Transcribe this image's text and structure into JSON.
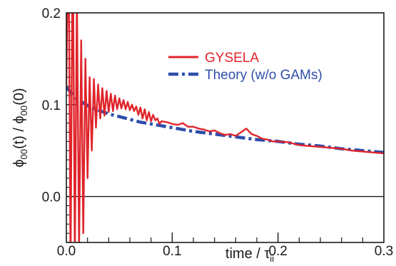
{
  "chart_data": {
    "type": "line",
    "xlabel": "time / τ",
    "xlabel_sub": "ii",
    "ylabel": "ϕ",
    "ylabel_parts": [
      "ϕ",
      "00",
      "(t) / ϕ",
      "00",
      "(0)"
    ],
    "xlim": [
      0.0,
      0.3
    ],
    "ylim": [
      -0.05,
      0.2
    ],
    "x_ticks": [
      "0.0",
      "0.1",
      "0.2",
      "0.3"
    ],
    "y_ticks": [
      "0.0",
      "0.1",
      "0.2"
    ],
    "zero_line": 0.0,
    "grid": false,
    "legend_position": "top-right",
    "series": [
      {
        "name": "GYSELA",
        "color": "#e0242b",
        "style": "solid",
        "x": [
          0.0,
          0.002,
          0.004,
          0.006,
          0.008,
          0.01,
          0.012,
          0.014,
          0.016,
          0.018,
          0.02,
          0.022,
          0.024,
          0.026,
          0.028,
          0.03,
          0.032,
          0.034,
          0.036,
          0.038,
          0.04,
          0.042,
          0.044,
          0.046,
          0.048,
          0.05,
          0.052,
          0.054,
          0.056,
          0.058,
          0.06,
          0.062,
          0.064,
          0.066,
          0.068,
          0.07,
          0.072,
          0.074,
          0.076,
          0.078,
          0.08,
          0.082,
          0.084,
          0.086,
          0.088,
          0.09,
          0.095,
          0.1,
          0.105,
          0.11,
          0.115,
          0.12,
          0.125,
          0.13,
          0.135,
          0.14,
          0.145,
          0.15,
          0.155,
          0.16,
          0.165,
          0.17,
          0.175,
          0.18,
          0.185,
          0.19,
          0.195,
          0.2,
          0.21,
          0.22,
          0.23,
          0.24,
          0.25,
          0.26,
          0.27,
          0.28,
          0.29,
          0.3
        ],
        "values": [
          0.12,
          0.3,
          -0.08,
          0.3,
          -0.07,
          0.22,
          -0.06,
          0.17,
          -0.04,
          0.15,
          0.02,
          0.13,
          0.05,
          0.128,
          0.075,
          0.122,
          0.085,
          0.118,
          0.088,
          0.115,
          0.092,
          0.112,
          0.093,
          0.11,
          0.095,
          0.107,
          0.096,
          0.105,
          0.095,
          0.103,
          0.094,
          0.1,
          0.093,
          0.098,
          0.089,
          0.097,
          0.085,
          0.095,
          0.083,
          0.092,
          0.082,
          0.089,
          0.083,
          0.085,
          0.079,
          0.082,
          0.081,
          0.079,
          0.078,
          0.08,
          0.076,
          0.076,
          0.074,
          0.073,
          0.071,
          0.072,
          0.069,
          0.067,
          0.068,
          0.066,
          0.07,
          0.074,
          0.068,
          0.066,
          0.063,
          0.062,
          0.06,
          0.06,
          0.059,
          0.056,
          0.055,
          0.054,
          0.053,
          0.052,
          0.05,
          0.049,
          0.048,
          0.047
        ]
      },
      {
        "name": "Theory (w/o GAMs)",
        "color": "#2f4eaa",
        "style": "dash-dot",
        "x": [
          0.0,
          0.01,
          0.02,
          0.03,
          0.04,
          0.05,
          0.06,
          0.07,
          0.08,
          0.09,
          0.1,
          0.12,
          0.14,
          0.16,
          0.18,
          0.2,
          0.22,
          0.24,
          0.26,
          0.28,
          0.3
        ],
        "values": [
          0.119,
          0.106,
          0.099,
          0.094,
          0.09,
          0.087,
          0.084,
          0.081,
          0.079,
          0.077,
          0.075,
          0.071,
          0.068,
          0.065,
          0.062,
          0.06,
          0.057,
          0.055,
          0.052,
          0.05,
          0.048
        ]
      }
    ]
  }
}
